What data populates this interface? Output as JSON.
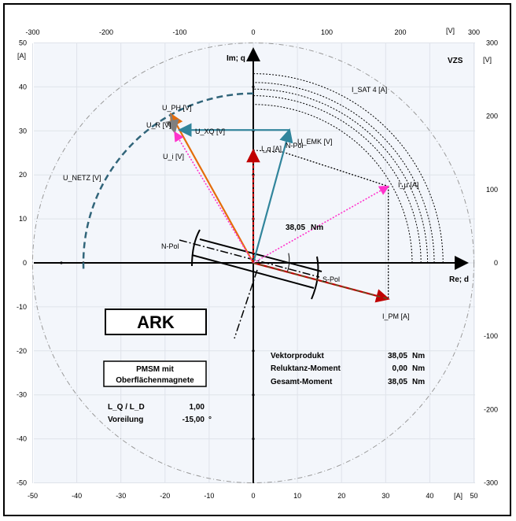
{
  "chart_data": {
    "type": "scatter",
    "axes": {
      "x_bottom": {
        "label": "[A]",
        "range": [
          -50,
          50
        ],
        "ticks": [
          -50,
          -40,
          -30,
          -20,
          -10,
          0,
          10,
          20,
          30,
          40,
          50
        ]
      },
      "y_left": {
        "label": "[A]",
        "range": [
          -50,
          50
        ],
        "ticks": [
          50,
          40,
          30,
          20,
          10,
          0,
          -10,
          -20,
          -30,
          -40,
          -50
        ]
      },
      "x_top": {
        "label": "[V]",
        "range": [
          -300,
          300
        ],
        "ticks": [
          -300,
          -200,
          -100,
          0,
          100,
          200,
          300
        ]
      },
      "y_right": {
        "label": "[V]",
        "range": [
          -300,
          300
        ],
        "ticks": [
          300,
          200,
          100,
          0,
          -100,
          -200,
          -300
        ]
      },
      "im_label": "Im; q",
      "re_label": "Re; d",
      "grid": true
    },
    "corner_label": "VZS",
    "vectors": [
      {
        "name": "U_PH [V]",
        "from": [
          0,
          0
        ],
        "to": [
          -18.7,
          33.8
        ],
        "color": "#e46c0a"
      },
      {
        "name": "U_R [V]",
        "from": [
          -18.7,
          33.8
        ],
        "to": [
          -17.8,
          29.7
        ],
        "color": "#7f7f7f"
      },
      {
        "name": "U_XQ [V]",
        "from": [
          8.2,
          30.2
        ],
        "to": [
          -16.7,
          30.2
        ],
        "color": "#31859c"
      },
      {
        "name": "U_EMK [V]",
        "from": [
          0,
          0
        ],
        "to": [
          8.2,
          30.2
        ],
        "color": "#31859c"
      },
      {
        "name": "U_i [V]",
        "from": [
          0,
          0
        ],
        "to": [
          -17.8,
          29.7
        ],
        "color": "#ff33cc"
      },
      {
        "name": "I_q [A]",
        "from": [
          0,
          0
        ],
        "to": [
          0,
          25.6
        ],
        "color": "#c00000"
      },
      {
        "name": "I_PM [A]",
        "from": [
          0,
          0
        ],
        "to": [
          30.6,
          -8.2
        ],
        "color": "#c00000"
      },
      {
        "name": "I_µ [A]",
        "from": [
          0,
          0
        ],
        "to": [
          30.6,
          17.4
        ],
        "color": "#ff33cc"
      }
    ],
    "curves": [
      {
        "name": "U_NETZ [V]",
        "radius": 38.5,
        "from_deg": 90,
        "to_deg": 182
      },
      {
        "name": "I_SAT 4 [A]",
        "radii": [
          36,
          38,
          39.5,
          41,
          43
        ]
      }
    ],
    "annotations": {
      "torque": "38,05",
      "torque_unit": "Nm",
      "n_pol": "N-Pol",
      "s_pol": "S-Pol",
      "n_pol_small": "N-Pol"
    }
  },
  "boxes": {
    "ark": "ARK",
    "motor_line1": "PMSM mit",
    "motor_line2": "Oberflächenmagnete"
  },
  "params": {
    "lq_ld_label": "L_Q / L_D",
    "lq_ld_value": "1,00",
    "advance_label": "Voreilung",
    "advance_value": "-15,00",
    "advance_unit": "°"
  },
  "results": [
    {
      "label": "Vektorprodukt",
      "value": "38,05",
      "unit": "Nm"
    },
    {
      "label": "Reluktanz-Moment",
      "value": "0,00",
      "unit": "Nm"
    },
    {
      "label": "Gesamt-Moment",
      "value": "38,05",
      "unit": "Nm"
    }
  ]
}
